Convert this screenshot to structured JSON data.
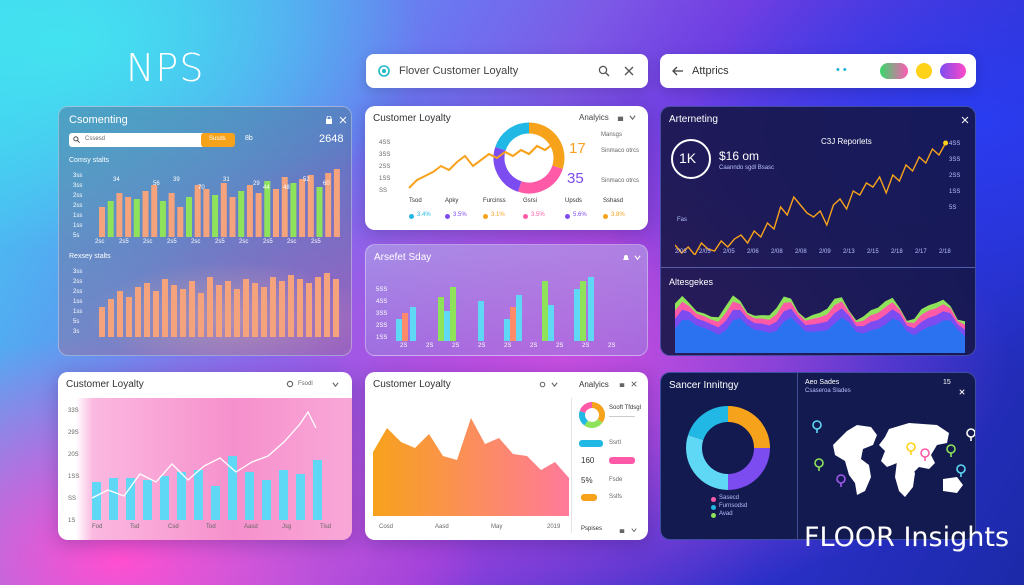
{
  "brand": {
    "title": "NPS",
    "footer": "FLOOR Insights"
  },
  "search": {
    "value": "Flover Customer Loyalty"
  },
  "topnav": {
    "label": "Attprics",
    "dots": "• •"
  },
  "colors": {
    "orange": "#f4a37c",
    "green": "#8fe35a",
    "cyan": "#5fd8f5",
    "purple": "#a259f0",
    "accent_orange": "#f7a21b",
    "accent_purple": "#7d4cf0"
  },
  "panel_a": {
    "title": "Csomenting",
    "search_value": "Cssesd",
    "button_label": "Susds",
    "badge": "8b",
    "stat": "2648",
    "chart1_label": "Comsy stalts",
    "chart2_label": "Rexsey stalts",
    "y_ticks1": [
      "3ss",
      "3ss",
      "2ss",
      "2ss",
      "1ss",
      "1ss",
      "5s"
    ],
    "x_ticks1": [
      "2sc",
      "2s5",
      "2sc",
      "2s5",
      "2sc",
      "2s5",
      "2sc",
      "2s5",
      "2sc",
      "2s5"
    ],
    "y_ticks2": [
      "3ss",
      "2ss",
      "2ss",
      "1ss",
      "1ss",
      "5s",
      "3s"
    ],
    "bar_labels": [
      "34",
      "56",
      "70",
      "31",
      "29",
      "48",
      "52",
      "60",
      "44",
      "39"
    ]
  },
  "panel_b": {
    "title": "Customer Loyalty",
    "header_right": "Analyics",
    "y_ticks": [
      "4SS",
      "3SS",
      "2SS",
      "1SS",
      "SS"
    ],
    "metric_label": "Mansgs",
    "metrics": [
      {
        "value": "17",
        "label": "Sinmaco otrcs"
      },
      {
        "value": "35",
        "label": "Sinmaco otrcs"
      }
    ],
    "legend": [
      {
        "label": "Tsod",
        "value": "3.4%"
      },
      {
        "label": "Apky",
        "value": "3.5%"
      },
      {
        "label": "Furcinss",
        "value": "3.1%"
      },
      {
        "label": "Gsrsi",
        "value": "3.5%"
      },
      {
        "label": "Upsds",
        "value": "5.6%"
      },
      {
        "label": "Sshasd",
        "value": "3.8%"
      }
    ]
  },
  "panel_c": {
    "title": "Arterneting",
    "big_value": "1K",
    "sub_value": "$16 om",
    "sub_note": "Caanndo sgdl Bsasc",
    "right_label": "C3J Reporlets",
    "y_ticks": [
      "4SS",
      "3SS",
      "2SS",
      "1SS",
      "5S"
    ],
    "x_ticks": [
      "2/03",
      "2/05",
      "2/05",
      "2/06",
      "2/08",
      "2/08",
      "2/09",
      "2/13",
      "2/15",
      "2/18",
      "2/17",
      "2/18"
    ],
    "area_label": "Altesgekes",
    "left_tick": "Fas"
  },
  "panel_d": {
    "title": "Arsefet Sday",
    "y_ticks": [
      "1SS",
      "2SS",
      "3SS",
      "4SS",
      "5SS"
    ],
    "x_ticks": [
      "2S",
      "2S",
      "2S",
      "2S",
      "2S",
      "2S",
      "2S",
      "2S",
      "2S"
    ]
  },
  "panel_e": {
    "title": "Customer Loyalty",
    "header_right": "Fsodl",
    "y_ticks": [
      "33S",
      "29S",
      "20S",
      "1SS",
      "SS",
      "1S"
    ],
    "x_ticks": [
      "Fod",
      "Tsd",
      "Csd",
      "Tod",
      "Aasd",
      "Jsg",
      "Tisd"
    ]
  },
  "panel_f": {
    "title": "Customer Loyalty",
    "x_ticks": [
      "Cosd",
      "Aasd",
      "May",
      "2019"
    ],
    "side_title": "Analyics",
    "side_head": "Sooft Tfdsgl",
    "side_rows": [
      {
        "value": "",
        "tag": "Ssrtl"
      },
      {
        "value": "160",
        "tag": "Fsdsl"
      },
      {
        "value": "5%",
        "tag": "Fsde"
      },
      {
        "value": "",
        "tag": "Sslfs"
      }
    ],
    "footer": "Pspises"
  },
  "panel_g": {
    "title": "Sancer Innitngy",
    "subtitle": "Aeo Sades",
    "subnote": "Csaseroa Slades",
    "stat": "15",
    "legend": [
      "Sasecd",
      "Furnsodsd",
      "Avad"
    ]
  }
}
